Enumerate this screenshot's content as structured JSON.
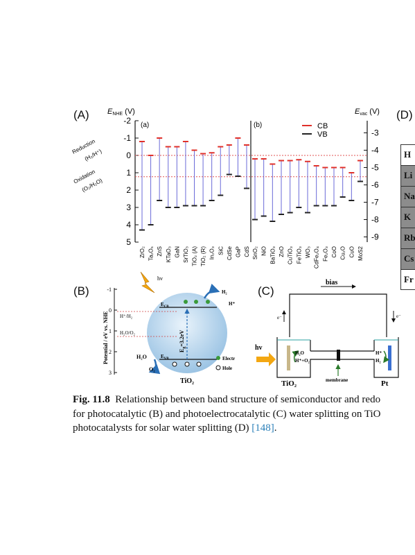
{
  "panels": {
    "A": "(A)",
    "B": "(B)",
    "C": "(C)",
    "D": "(D)"
  },
  "chart_data": {
    "type": "range-bar",
    "left_axis": {
      "label": "E",
      "sub": "NHE",
      "unit": "(V)",
      "ticks": [
        "-2",
        "-1",
        "0",
        "1",
        "2",
        "3",
        "4",
        "5"
      ],
      "range": [
        -2,
        5
      ]
    },
    "right_axis": {
      "label": "E",
      "sub": "vac",
      "unit": "(V)",
      "ticks": [
        "-3",
        "-4",
        "-5",
        "-6",
        "-7",
        "-8",
        "-9"
      ]
    },
    "legend": [
      {
        "name": "CB",
        "color": "#e0302a"
      },
      {
        "name": "VB",
        "color": "#222222"
      }
    ],
    "reference_lines": {
      "reduction": {
        "label": "Reduction",
        "sublabel": "(H₂/H⁺)",
        "value": 0
      },
      "oxidation": {
        "label": "Oxidation",
        "sublabel": "(O₂/H₂O)",
        "value": 1.23
      }
    },
    "groups": [
      {
        "name": "(a)",
        "items": [
          {
            "m": "ZrO₂",
            "cb": -0.8,
            "vb": 4.3
          },
          {
            "m": "Ta₂O₅",
            "cb": 0.0,
            "vb": 4.0
          },
          {
            "m": "ZnS",
            "cb": -1.0,
            "vb": 2.6
          },
          {
            "m": "KTaO₃",
            "cb": -0.5,
            "vb": 3.0
          },
          {
            "m": "GaN",
            "cb": -0.5,
            "vb": 3.0
          },
          {
            "m": "SrTiO₃",
            "cb": -0.8,
            "vb": 2.9
          },
          {
            "m": "TiO₂ (A)",
            "cb": -0.3,
            "vb": 2.9
          },
          {
            "m": "TiO₂ (R)",
            "cb": -0.1,
            "vb": 2.9
          },
          {
            "m": "In₂O₃",
            "cb": -0.15,
            "vb": 2.6
          },
          {
            "m": "SiC",
            "cb": -0.5,
            "vb": 2.3
          },
          {
            "m": "CdSe",
            "cb": -0.6,
            "vb": 1.1
          },
          {
            "m": "GaP",
            "cb": -1.0,
            "vb": 1.2
          },
          {
            "m": "CdS",
            "cb": -0.6,
            "vb": 1.9
          }
        ]
      },
      {
        "name": "(b)",
        "items": [
          {
            "m": "SnO₂",
            "cb": 0.2,
            "vb": 3.7
          },
          {
            "m": "NiO",
            "cb": 0.2,
            "vb": 3.5
          },
          {
            "m": "BaTiO₃",
            "cb": 0.5,
            "vb": 3.8
          },
          {
            "m": "ZnO",
            "cb": 0.3,
            "vb": 3.4
          },
          {
            "m": "CuTiO₃",
            "cb": 0.3,
            "vb": 3.3
          },
          {
            "m": "FeTiO₃",
            "cb": 0.25,
            "vb": 3.0
          },
          {
            "m": "WO₃",
            "cb": 0.35,
            "vb": 3.3
          },
          {
            "m": "CdFe₂O₄",
            "cb": 0.6,
            "vb": 2.9
          },
          {
            "m": "Fe₂O₃",
            "cb": 0.7,
            "vb": 2.9
          },
          {
            "m": "CoO",
            "cb": 0.7,
            "vb": 2.9
          },
          {
            "m": "Cu₂O",
            "cb": 0.7,
            "vb": 2.4
          },
          {
            "m": "CuO",
            "cb": 1.0,
            "vb": 2.6
          },
          {
            "m": "MoS2",
            "cb": 0.3,
            "vb": 1.5
          }
        ]
      }
    ]
  },
  "panelB": {
    "axis_label": "Potential / eV vs. NHE",
    "ticks": [
      "-1",
      "0",
      "1",
      "2",
      "3"
    ],
    "hv": "hv",
    "ecb": "E",
    "ecb_sub": "CB",
    "evb": "E",
    "evb_sub": "VB",
    "eg": "E",
    "eg_sub": "g",
    "eg_value": "=3.2eV",
    "h2": "H₂",
    "hplus": "H⁺",
    "couple1": "H⁺/H₂",
    "couple2": "H₂O/O₂",
    "h2o": "H₂O",
    "o2": "O₂",
    "electron": "Electr",
    "hole": "Hole",
    "material": "TiO₂"
  },
  "panelC": {
    "bias": "bias",
    "eminus": "e⁻",
    "hv": "hv",
    "left_top": "H₂O",
    "left_bottom": "H⁺+O₂",
    "right_top": "H⁺",
    "right_bottom": "H₂",
    "membrane": "membrane",
    "anode": "TiO₂",
    "cathode": "Pt"
  },
  "tableD": {
    "rows": [
      "H",
      "Li",
      "Na",
      "K",
      "Rb",
      "Cs",
      "Fr"
    ]
  },
  "caption": {
    "fig": "Fig. 11.8",
    "line1": "Relationship between band structure of semiconductor and redo",
    "line2": "for photocatalytic (B) and photoelectrocatalytic (C) water splitting on TiO",
    "line3a": "photocatalysts for solar water splitting (D) ",
    "ref": "[148]",
    "line3b": "."
  }
}
